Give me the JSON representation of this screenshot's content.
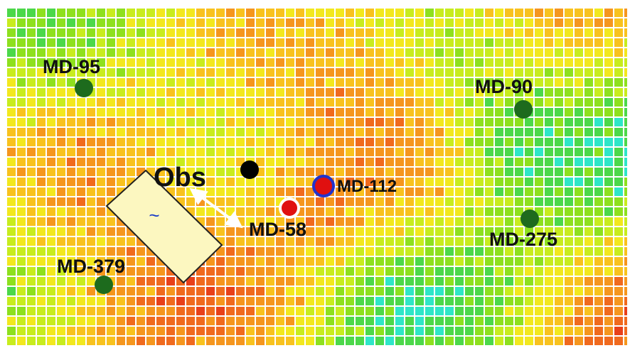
{
  "wells": [
    {
      "label": "MD-95"
    },
    {
      "label": "MD-90"
    },
    {
      "label": "Obs"
    },
    {
      "label": "MD-112"
    },
    {
      "label": "MD-58"
    },
    {
      "label": "MD-275"
    },
    {
      "label": "MD-379"
    }
  ],
  "fault_label": "~"
}
